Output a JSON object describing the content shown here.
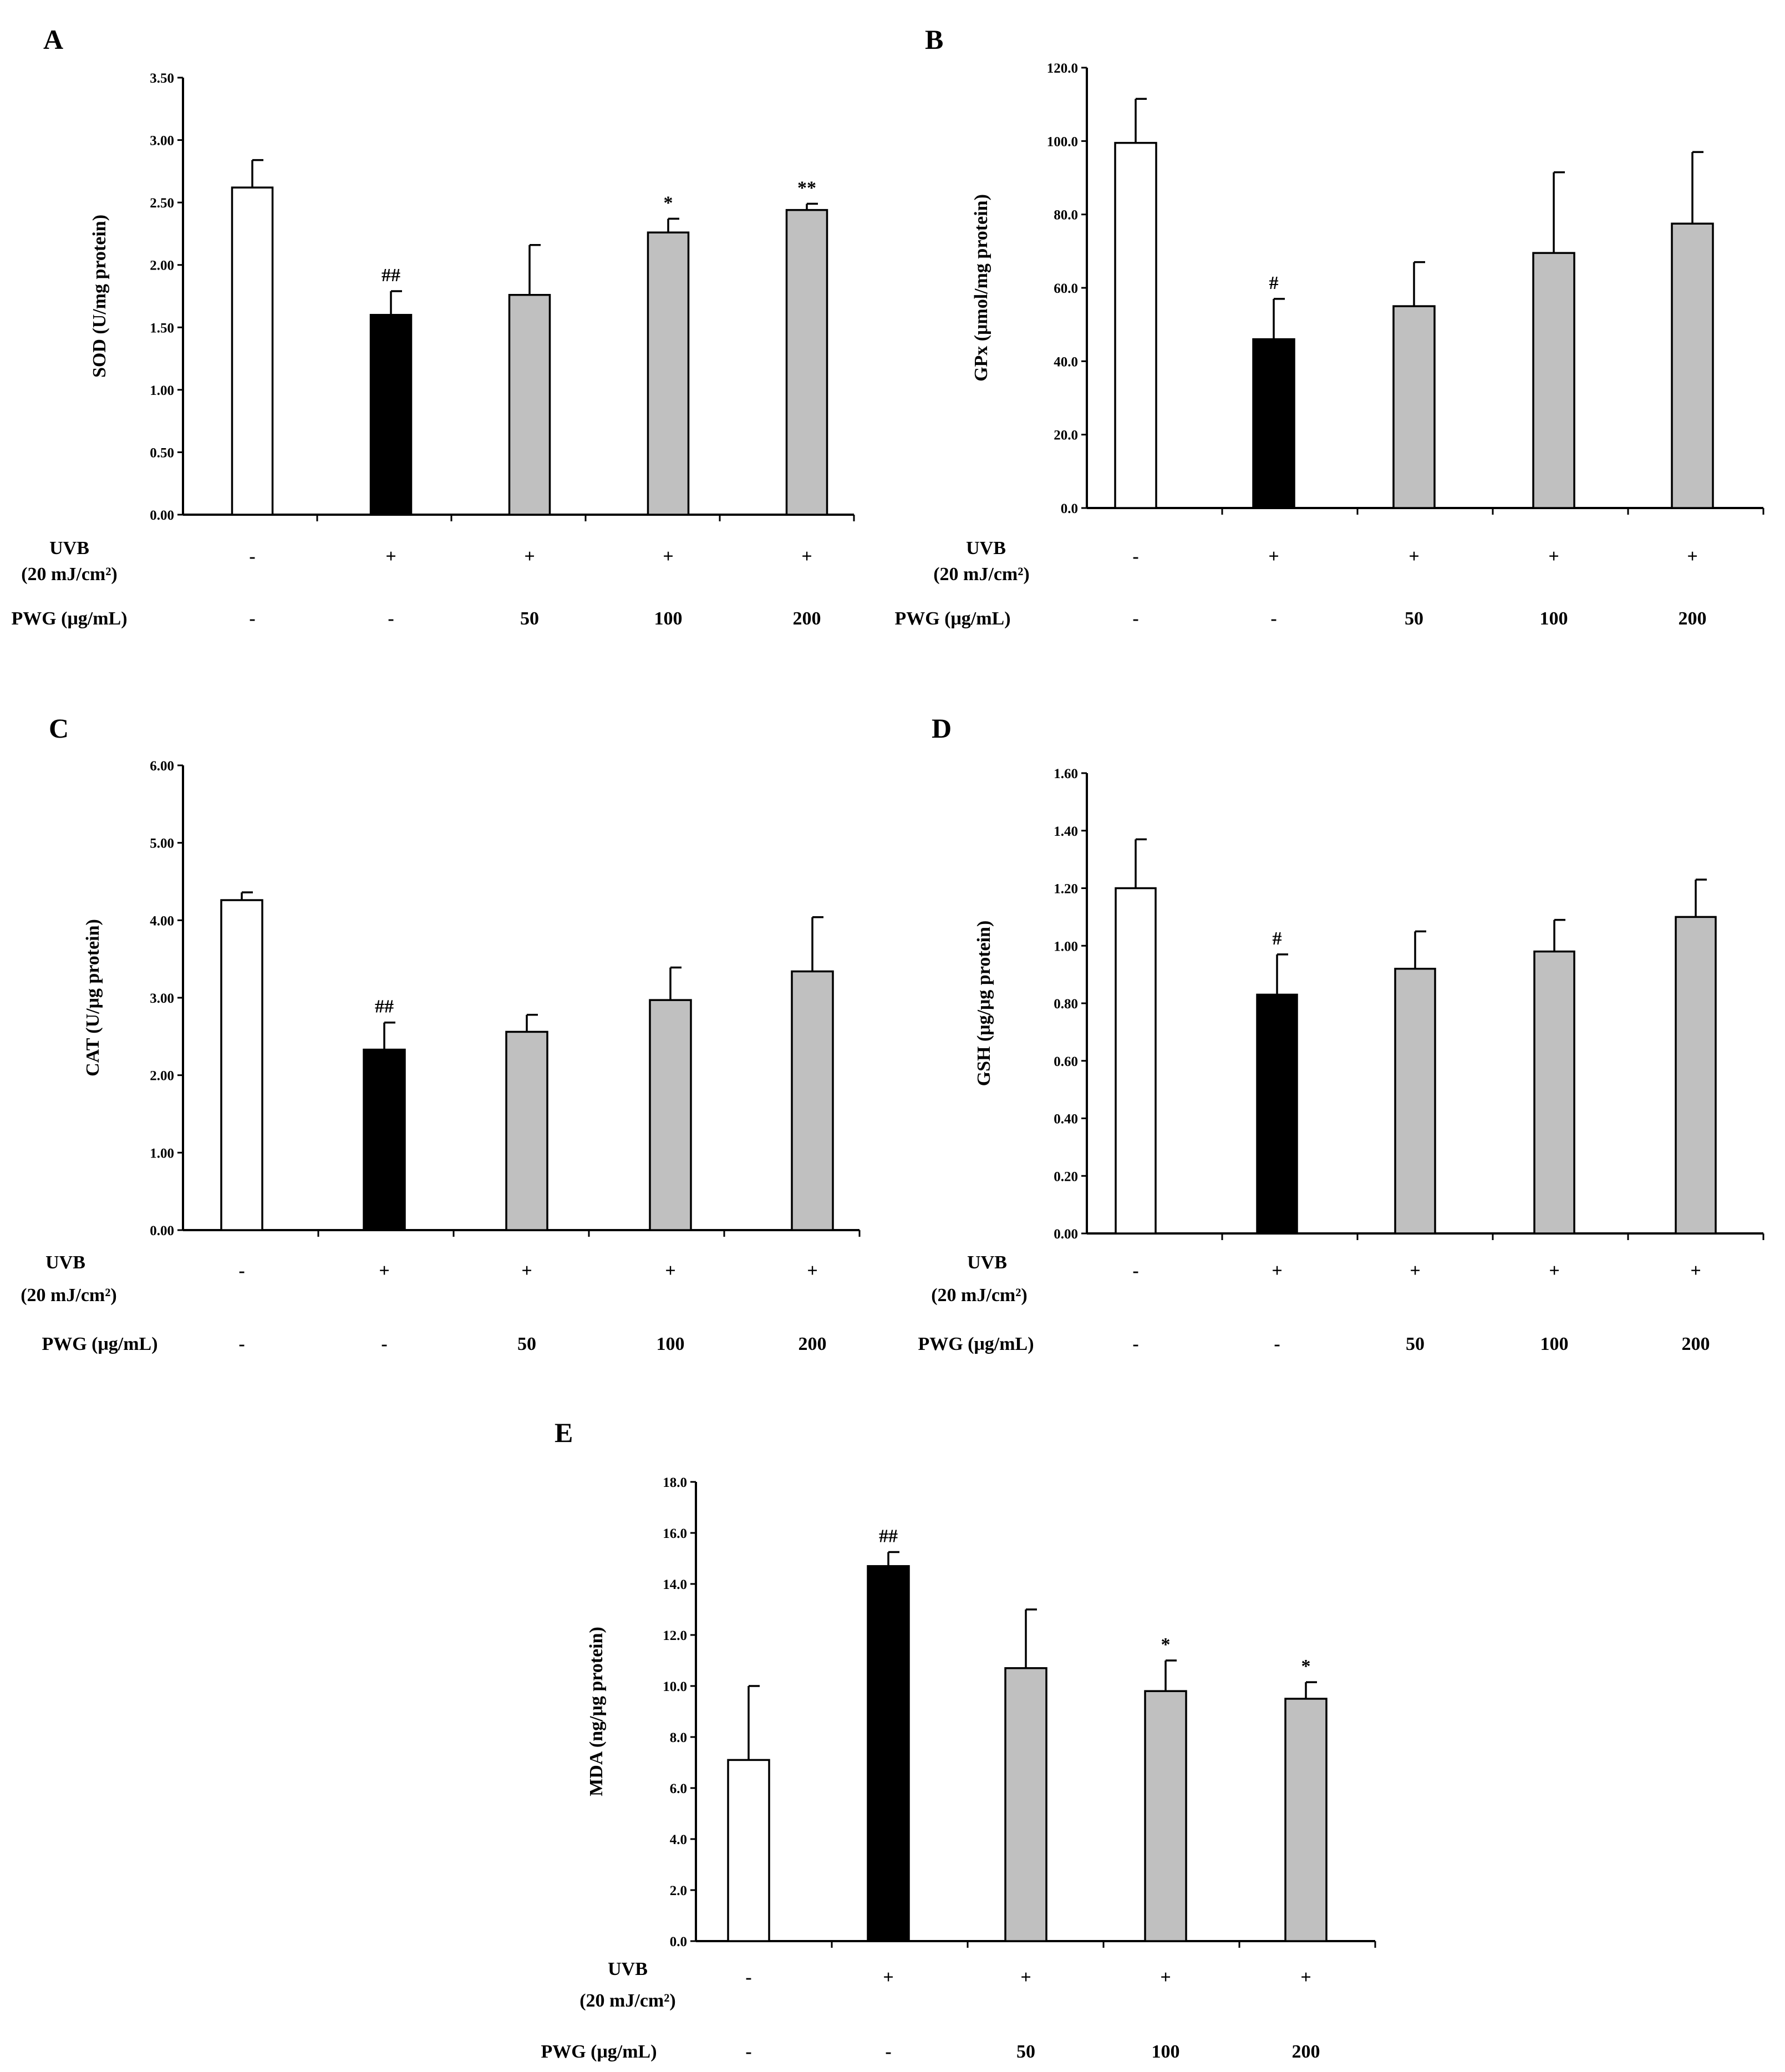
{
  "chart_data": [
    {
      "panel": "A",
      "type": "bar",
      "ylabel": "SOD (U/mg protein)",
      "ylim": [
        0,
        3.5
      ],
      "yticks": [
        "0.00",
        "0.50",
        "1.00",
        "1.50",
        "2.00",
        "2.50",
        "3.00",
        "3.50"
      ],
      "values": [
        2.62,
        1.6,
        1.76,
        2.26,
        2.44
      ],
      "errors": [
        0.22,
        0.19,
        0.4,
        0.11,
        0.05
      ],
      "bar_colors": [
        "#ffffff",
        "#000000",
        "#c0c0c0",
        "#c0c0c0",
        "#c0c0c0"
      ],
      "significance": [
        "",
        "##",
        "",
        "*",
        "**"
      ],
      "row1_label_line1": "UVB",
      "row1_label_line2": "(20 mJ/cm²)",
      "row1_values": [
        "-",
        "+",
        "+",
        "+",
        "+"
      ],
      "row2_label": "PWG (μg/mL)",
      "row2_values": [
        "-",
        "-",
        "50",
        "100",
        "200"
      ]
    },
    {
      "panel": "B",
      "type": "bar",
      "ylabel": "GPx (μmol/mg protein)",
      "ylim": [
        0,
        120
      ],
      "yticks": [
        "0.0",
        "20.0",
        "40.0",
        "60.0",
        "80.0",
        "100.0",
        "120.0"
      ],
      "values": [
        99.5,
        46.0,
        55.0,
        69.5,
        77.5
      ],
      "errors": [
        12.0,
        11.0,
        12.0,
        22.0,
        19.5
      ],
      "bar_colors": [
        "#ffffff",
        "#000000",
        "#c0c0c0",
        "#c0c0c0",
        "#c0c0c0"
      ],
      "significance": [
        "",
        "#",
        "",
        "",
        ""
      ],
      "row1_label_line1": "UVB",
      "row1_label_line2": "(20 mJ/cm²)",
      "row1_values": [
        "-",
        "+",
        "+",
        "+",
        "+"
      ],
      "row2_label": "PWG (μg/mL)",
      "row2_values": [
        "-",
        "-",
        "50",
        "100",
        "200"
      ]
    },
    {
      "panel": "C",
      "type": "bar",
      "ylabel": "CAT (U/μg protein)",
      "ylim": [
        0,
        6
      ],
      "yticks": [
        "0.00",
        "1.00",
        "2.00",
        "3.00",
        "4.00",
        "5.00",
        "6.00"
      ],
      "values": [
        4.26,
        2.33,
        2.56,
        2.97,
        3.34
      ],
      "errors": [
        0.1,
        0.35,
        0.22,
        0.42,
        0.7
      ],
      "bar_colors": [
        "#ffffff",
        "#000000",
        "#c0c0c0",
        "#c0c0c0",
        "#c0c0c0"
      ],
      "significance": [
        "",
        "##",
        "",
        "",
        ""
      ],
      "row1_label_line1": "UVB",
      "row1_label_line2": "(20 mJ/cm²)",
      "row1_values": [
        "-",
        "+",
        "+",
        "+",
        "+"
      ],
      "row2_label": "PWG (μg/mL)",
      "row2_values": [
        "-",
        "-",
        "50",
        "100",
        "200"
      ]
    },
    {
      "panel": "D",
      "type": "bar",
      "ylabel": "GSH (μg/μg protein)",
      "ylim": [
        0,
        1.6
      ],
      "yticks": [
        "0.00",
        "0.20",
        "0.40",
        "0.60",
        "0.80",
        "1.00",
        "1.20",
        "1.40",
        "1.60"
      ],
      "values": [
        1.2,
        0.83,
        0.92,
        0.98,
        1.1
      ],
      "errors": [
        0.17,
        0.14,
        0.13,
        0.11,
        0.13
      ],
      "bar_colors": [
        "#ffffff",
        "#000000",
        "#c0c0c0",
        "#c0c0c0",
        "#c0c0c0"
      ],
      "significance": [
        "",
        "#",
        "",
        "",
        ""
      ],
      "row1_label_line1": "UVB",
      "row1_label_line2": "(20 mJ/cm²)",
      "row1_values": [
        "-",
        "+",
        "+",
        "+",
        "+"
      ],
      "row2_label": "PWG (μg/mL)",
      "row2_values": [
        "-",
        "-",
        "50",
        "100",
        "200"
      ]
    },
    {
      "panel": "E",
      "type": "bar",
      "ylabel": "MDA (ng/μg protein)",
      "ylim": [
        0,
        18
      ],
      "yticks": [
        "0.0",
        "2.0",
        "4.0",
        "6.0",
        "8.0",
        "10.0",
        "12.0",
        "14.0",
        "16.0",
        "18.0"
      ],
      "values": [
        7.1,
        14.7,
        10.7,
        9.8,
        9.5
      ],
      "errors": [
        2.9,
        0.55,
        2.3,
        1.2,
        0.65
      ],
      "bar_colors": [
        "#ffffff",
        "#000000",
        "#c0c0c0",
        "#c0c0c0",
        "#c0c0c0"
      ],
      "significance": [
        "",
        "##",
        "",
        "*",
        "*"
      ],
      "row1_label_line1": "UVB",
      "row1_label_line2": "(20 mJ/cm²)",
      "row1_values": [
        "-",
        "+",
        "+",
        "+",
        "+"
      ],
      "row2_label": "PWG (μg/mL)",
      "row2_values": [
        "-",
        "-",
        "50",
        "100",
        "200"
      ]
    }
  ]
}
